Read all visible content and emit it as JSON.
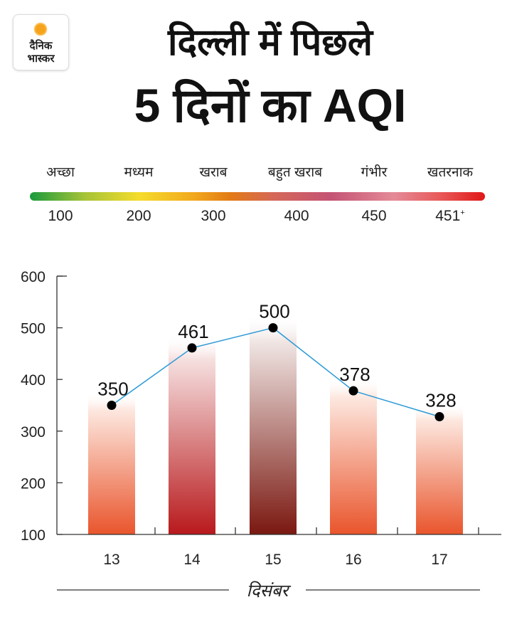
{
  "logo": {
    "line1": "दैनिक",
    "line2": "भास्कर"
  },
  "title": {
    "line1": "दिल्ली में पिछले",
    "line2": "5 दिनों का AQI"
  },
  "scale": {
    "labels": [
      "अच्छा",
      "मध्यम",
      "खराब",
      "बहुत खराब",
      "गंभीर",
      "खतरनाक"
    ],
    "values": [
      "100",
      "200",
      "300",
      "400",
      "450",
      "451"
    ],
    "last_suffix": "+"
  },
  "chart_data": {
    "type": "bar",
    "title": "5 दिनों का AQI",
    "categories": [
      "13",
      "14",
      "15",
      "16",
      "17"
    ],
    "values": [
      350,
      461,
      500,
      378,
      328
    ],
    "xlabel": "दिसंबर",
    "ylabel": "",
    "ylim": [
      100,
      600
    ],
    "yticks": [
      100,
      200,
      300,
      400,
      500,
      600
    ],
    "line_overlay": true,
    "colors": {
      "line": "#2a9ad6",
      "bars": [
        [
          "#fde8e0",
          "#e9552c"
        ],
        [
          "#f6e0e0",
          "#b8191c"
        ],
        [
          "#f0e6e4",
          "#7a1810"
        ],
        [
          "#fde8e0",
          "#e9552c"
        ],
        [
          "#fde8e0",
          "#e9552c"
        ]
      ]
    }
  }
}
